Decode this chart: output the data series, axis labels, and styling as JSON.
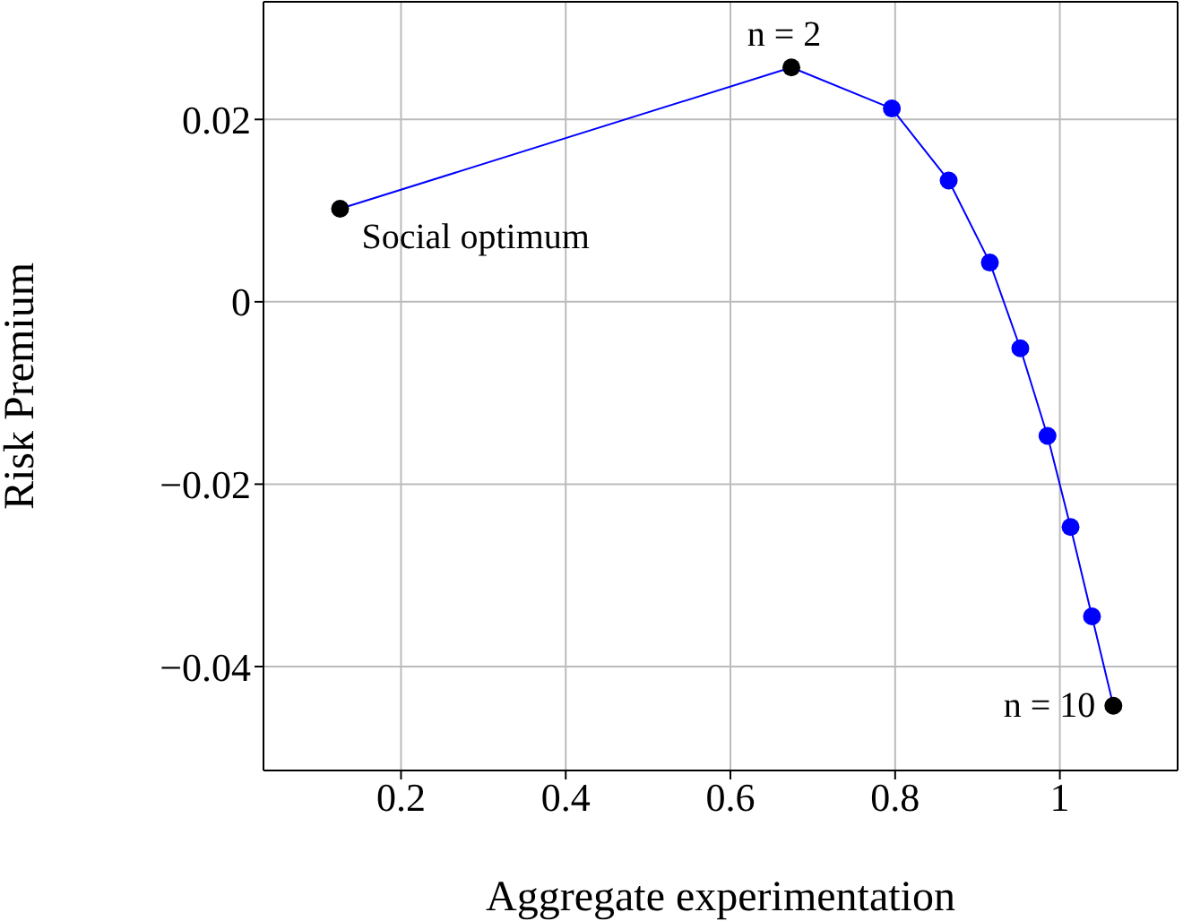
{
  "chart_data": {
    "type": "line",
    "xlabel": "Aggregate experimentation",
    "ylabel": "Risk Premium",
    "x": [
      0.126,
      0.674,
      0.796,
      0.865,
      0.915,
      0.952,
      0.985,
      1.013,
      1.039,
      1.065
    ],
    "series": [
      {
        "color": "#0000ff",
        "colors": [
          "#000000",
          "#000000",
          "#0000ff",
          "#0000ff",
          "#0000ff",
          "#0000ff",
          "#0000ff",
          "#0000ff",
          "#0000ff",
          "#000000"
        ],
        "values": [
          0.0102,
          0.0257,
          0.0212,
          0.0133,
          0.0043,
          -0.0051,
          -0.0147,
          -0.0247,
          -0.0345,
          -0.0443
        ]
      }
    ],
    "xlim": [
      0.033,
      1.143
    ],
    "xticks": [
      0.2,
      0.4,
      0.6,
      0.8,
      {
        "value": 1,
        "label": "1"
      }
    ],
    "ylim": [
      -0.0514,
      0.0329
    ],
    "yticks": [
      {
        "value": -0.04,
        "label": "−0.04"
      },
      {
        "value": -0.02,
        "label": "−0.02"
      },
      0,
      0.02
    ],
    "grid": true,
    "marker": "circle",
    "line_style": "solid",
    "annotations": [
      {
        "text": "Social optimum",
        "x": 0.126,
        "y": 0.0102
      },
      {
        "text": "n = 2",
        "x": 0.674,
        "y": 0.0257
      },
      {
        "text": "n = 10",
        "x": 1.065,
        "y": -0.0443
      }
    ]
  }
}
